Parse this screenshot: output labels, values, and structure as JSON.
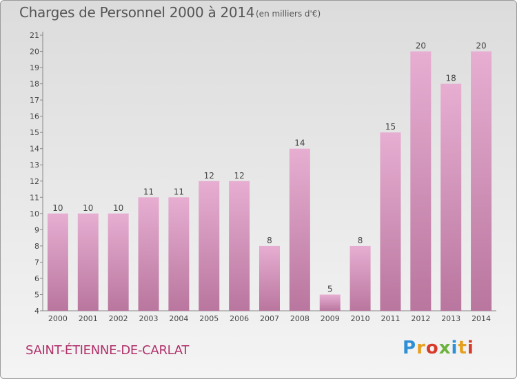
{
  "colors": {
    "bar_top": "#e7aed2",
    "bar_bottom": "#b9769e",
    "place": "#b0306a"
  },
  "chart_data": {
    "type": "bar",
    "title": "Charges de Personnel 2000 à 2014",
    "subtitle": "(en milliers d'€)",
    "categories": [
      "2000",
      "2001",
      "2002",
      "2003",
      "2004",
      "2005",
      "2006",
      "2007",
      "2008",
      "2009",
      "2010",
      "2011",
      "2012",
      "2013",
      "2014"
    ],
    "values": [
      10,
      10,
      10,
      11,
      11,
      12,
      12,
      8,
      14,
      5,
      8,
      15,
      20,
      18,
      20
    ],
    "ylim": [
      4,
      21
    ],
    "yticks": [
      4,
      5,
      6,
      7,
      8,
      9,
      10,
      11,
      12,
      13,
      14,
      15,
      16,
      17,
      18,
      19,
      20,
      21
    ],
    "grid": false
  },
  "footer": {
    "place": "SAINT-ÉTIENNE-DE-CARLAT",
    "logo": "Proxiti"
  }
}
